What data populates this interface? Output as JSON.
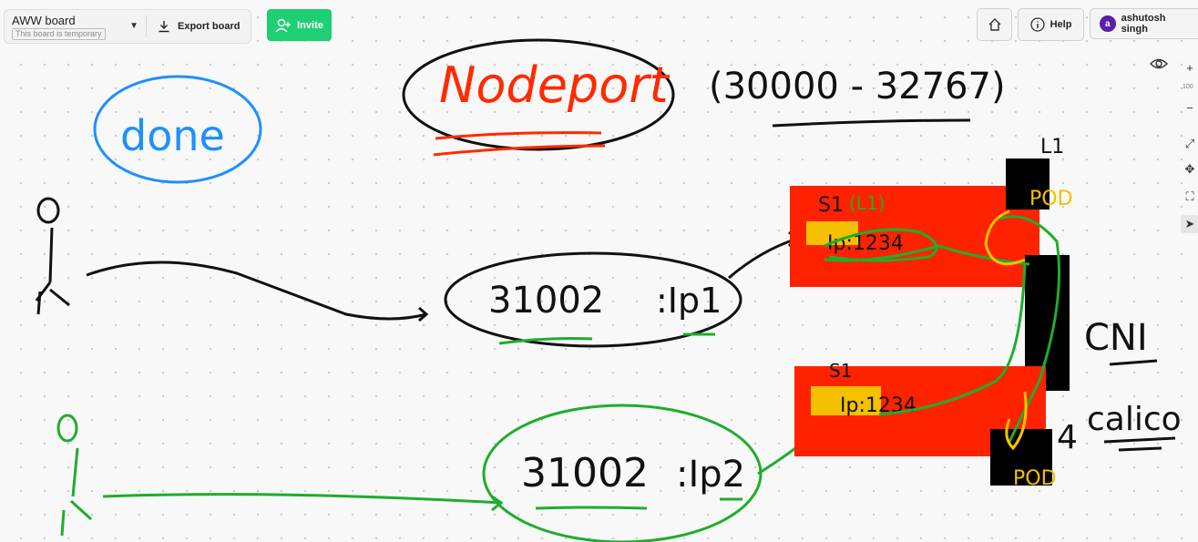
{
  "toolbar": {
    "board_title": "AWW board",
    "board_subtitle": "This board is temporary",
    "export_label": "Export board",
    "invite_label": "Invite"
  },
  "header_right": {
    "help_label": "Help",
    "user_initial": "a",
    "user_name": "ashutosh singh"
  },
  "zoom": {
    "level": "100"
  },
  "drawing": {
    "title": "Nodeport",
    "range": "(30000 - 32767)",
    "status": "done",
    "node1": "L1",
    "s1_top": "S1",
    "s1_top_note": "(L1)",
    "ip_top": "Ip:1234",
    "pod_top": "POD",
    "s1_bottom": "S1",
    "ip_bottom": "Ip:1234",
    "pod_bottom": "POD",
    "port_top": "31002",
    "ip1": ":Ip1",
    "port_bottom": "31002",
    "ip2": ":Ip2",
    "cni": "CNI",
    "calico_num": "4",
    "calico": "calico"
  },
  "colors": {
    "invite": "#1fcf73",
    "red_box": "#ff2200",
    "yellow": "#f5c000",
    "green_ink": "#1fad2c",
    "blue_ink": "#1e90ff",
    "avatar": "#5b1fa8"
  }
}
